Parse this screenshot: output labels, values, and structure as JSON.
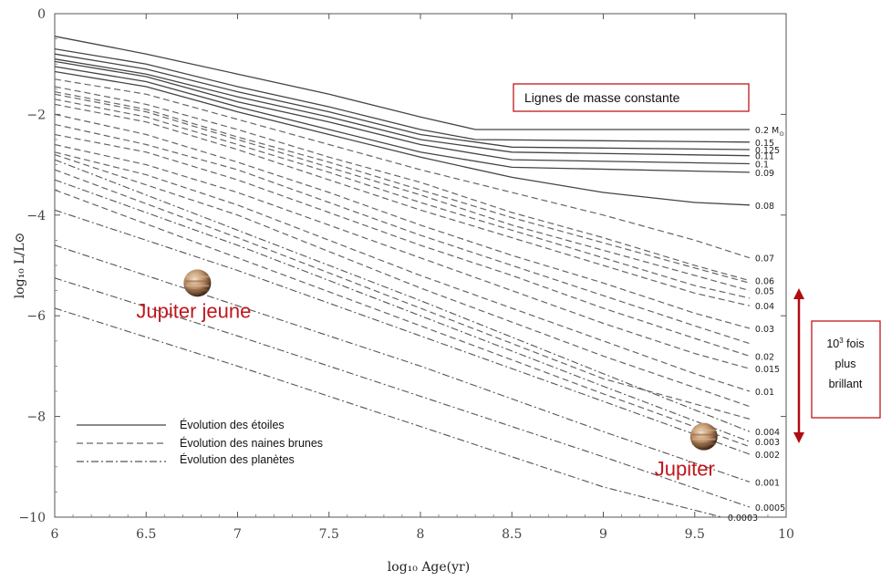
{
  "chart_data": {
    "type": "line",
    "xlabel": "log₁₀ Age(yr)",
    "ylabel": "log₁₀ L/L⊙",
    "xlim": [
      6,
      10
    ],
    "ylim": [
      -10,
      0
    ],
    "xticks": [
      "6",
      "6.5",
      "7",
      "7.5",
      "8",
      "8.5",
      "9",
      "9.5",
      "10"
    ],
    "yticks": [
      "0",
      "−2",
      "−4",
      "−6",
      "−8",
      "−10"
    ],
    "grid": false,
    "legend": {
      "position": "bottom-left",
      "entries": [
        {
          "label": "Évolution des étoiles",
          "style": "solid"
        },
        {
          "label": "Évolution des naines brunes",
          "style": "dashed"
        },
        {
          "label": "Évolution des planètes",
          "style": "dashdot"
        }
      ]
    },
    "series": [
      {
        "name": "0.2 M⊙",
        "label": "0.2 M",
        "sun": true,
        "kind": "star",
        "x": [
          6.0,
          6.5,
          7.0,
          7.5,
          8.0,
          8.3,
          9.8
        ],
        "y": [
          -0.45,
          -0.8,
          -1.2,
          -1.6,
          -2.05,
          -2.3,
          -2.3
        ]
      },
      {
        "name": "0.15",
        "label": "0.15",
        "kind": "star",
        "x": [
          6.0,
          6.5,
          7.0,
          7.5,
          8.0,
          8.3,
          9.8
        ],
        "y": [
          -0.7,
          -1.0,
          -1.45,
          -1.85,
          -2.3,
          -2.5,
          -2.55
        ]
      },
      {
        "name": "0.125",
        "label": "0.125",
        "kind": "star",
        "x": [
          6.0,
          6.5,
          7.0,
          7.5,
          8.0,
          8.5,
          9.8
        ],
        "y": [
          -0.8,
          -1.1,
          -1.55,
          -1.95,
          -2.4,
          -2.65,
          -2.7
        ]
      },
      {
        "name": "0.11",
        "label": "0.11",
        "kind": "star",
        "x": [
          6.0,
          6.5,
          7.0,
          7.5,
          8.0,
          8.5,
          9.8
        ],
        "y": [
          -0.9,
          -1.2,
          -1.65,
          -2.05,
          -2.5,
          -2.75,
          -2.82
        ]
      },
      {
        "name": "0.1",
        "label": "0.1",
        "kind": "star",
        "x": [
          6.0,
          6.5,
          7.0,
          7.5,
          8.0,
          8.5,
          9.8
        ],
        "y": [
          -0.95,
          -1.25,
          -1.75,
          -2.15,
          -2.6,
          -2.9,
          -2.98
        ]
      },
      {
        "name": "0.09",
        "label": "0.09",
        "kind": "star",
        "x": [
          6.0,
          6.5,
          7.0,
          7.5,
          8.0,
          8.5,
          9.8
        ],
        "y": [
          -1.05,
          -1.35,
          -1.85,
          -2.3,
          -2.75,
          -3.05,
          -3.15
        ]
      },
      {
        "name": "0.08",
        "label": "0.08",
        "kind": "star",
        "x": [
          6.0,
          6.5,
          7.0,
          7.5,
          8.0,
          8.5,
          9.0,
          9.5,
          9.8
        ],
        "y": [
          -1.15,
          -1.45,
          -1.95,
          -2.4,
          -2.85,
          -3.25,
          -3.55,
          -3.75,
          -3.8
        ]
      },
      {
        "name": "0.07",
        "label": "0.07",
        "kind": "bd",
        "x": [
          6.0,
          6.5,
          7.0,
          7.5,
          8.0,
          8.5,
          9.0,
          9.5,
          9.8
        ],
        "y": [
          -1.3,
          -1.6,
          -2.1,
          -2.6,
          -3.1,
          -3.55,
          -4.0,
          -4.5,
          -4.85
        ]
      },
      {
        "name": "0.06",
        "label": "0.06",
        "kind": "bd",
        "x": [
          6.0,
          6.5,
          7.0,
          7.5,
          8.0,
          8.5,
          9.0,
          9.5,
          9.8
        ],
        "y": [
          -1.45,
          -1.8,
          -2.3,
          -2.85,
          -3.35,
          -3.95,
          -4.45,
          -5.0,
          -5.3
        ]
      },
      {
        "name": "0.05",
        "label": "0.05",
        "kind": "bd",
        "x": [
          6.0,
          6.5,
          7.0,
          7.5,
          8.0,
          8.5,
          9.0,
          9.5,
          9.8
        ],
        "y": [
          -1.6,
          -1.95,
          -2.5,
          -3.05,
          -3.6,
          -4.2,
          -4.7,
          -5.2,
          -5.5
        ]
      },
      {
        "name": "0.04",
        "label": "0.04",
        "kind": "bd",
        "x": [
          6.0,
          6.5,
          7.0,
          7.5,
          8.0,
          8.5,
          9.0,
          9.5,
          9.8
        ],
        "y": [
          -1.8,
          -2.15,
          -2.7,
          -3.3,
          -3.9,
          -4.45,
          -5.0,
          -5.55,
          -5.8
        ]
      },
      {
        "name": "0.03",
        "label": "0.03",
        "kind": "bd",
        "x": [
          6.0,
          6.5,
          7.0,
          7.5,
          8.0,
          8.5,
          9.0,
          9.5,
          9.8
        ],
        "y": [
          -2.0,
          -2.4,
          -2.95,
          -3.55,
          -4.2,
          -4.8,
          -5.35,
          -5.95,
          -6.25
        ]
      },
      {
        "name": "0.02",
        "label": "0.02",
        "kind": "bd",
        "x": [
          6.0,
          6.5,
          7.0,
          7.5,
          8.0,
          8.5,
          9.0,
          9.5,
          9.8
        ],
        "y": [
          -2.4,
          -2.75,
          -3.3,
          -3.95,
          -4.6,
          -5.2,
          -5.85,
          -6.45,
          -6.8
        ]
      },
      {
        "name": "0.015",
        "label": "0.015",
        "kind": "bd",
        "x": [
          6.0,
          6.5,
          7.0,
          7.5,
          8.0,
          8.5,
          9.0,
          9.5,
          9.8
        ],
        "y": [
          -2.6,
          -3.0,
          -3.55,
          -4.2,
          -4.85,
          -5.5,
          -6.15,
          -6.75,
          -7.05
        ]
      },
      {
        "name": "0.01",
        "label": "0.01",
        "kind": "bd",
        "x": [
          6.0,
          6.5,
          7.0,
          7.5,
          8.0,
          8.5,
          9.0,
          9.5,
          9.8
        ],
        "y": [
          -2.75,
          -3.2,
          -3.8,
          -4.5,
          -5.2,
          -5.85,
          -6.5,
          -7.15,
          -7.5
        ]
      },
      {
        "name": "0.004",
        "label": "0.004",
        "kind": "planet",
        "x": [
          6.0,
          7.0,
          8.0,
          9.0,
          9.8
        ],
        "y": [
          -2.9,
          -4.3,
          -5.7,
          -7.15,
          -8.3
        ]
      },
      {
        "name": "0.003",
        "label": "0.003",
        "kind": "planet",
        "x": [
          6.0,
          7.0,
          8.0,
          9.0,
          9.8
        ],
        "y": [
          -3.3,
          -4.6,
          -6.0,
          -7.4,
          -8.5
        ]
      },
      {
        "name": "0.002",
        "label": "0.002",
        "kind": "planet",
        "x": [
          6.0,
          7.0,
          8.0,
          9.0,
          9.8
        ],
        "y": [
          -3.9,
          -5.1,
          -6.4,
          -7.7,
          -8.75
        ]
      },
      {
        "name": "0.001",
        "label": "0.001",
        "kind": "planet",
        "x": [
          6.0,
          7.0,
          8.0,
          9.0,
          9.8
        ],
        "y": [
          -4.6,
          -5.8,
          -7.0,
          -8.3,
          -9.3
        ]
      },
      {
        "name": "0.0005",
        "label": "0.0005",
        "kind": "planet",
        "x": [
          6.0,
          7.0,
          8.0,
          9.0,
          9.8
        ],
        "y": [
          -5.25,
          -6.4,
          -7.6,
          -8.8,
          -9.8
        ]
      },
      {
        "name": "0.0003",
        "label": "0.0003",
        "kind": "planet",
        "x": [
          6.0,
          7.0,
          8.0,
          9.0,
          9.65
        ],
        "y": [
          -5.85,
          -7.0,
          -8.2,
          -9.4,
          -10.0
        ]
      }
    ],
    "extra_dashed": [
      {
        "x": [
          6.0,
          6.5,
          7.0,
          7.5,
          8.0,
          8.5,
          9.0,
          9.5,
          9.8
        ],
        "y": [
          -1.55,
          -1.9,
          -2.45,
          -2.95,
          -3.5,
          -4.05,
          -4.55,
          -5.05,
          -5.35
        ]
      },
      {
        "x": [
          6.0,
          6.5,
          7.0,
          7.5,
          8.0,
          8.5,
          9.0,
          9.5,
          9.8
        ],
        "y": [
          -1.7,
          -2.05,
          -2.6,
          -3.15,
          -3.75,
          -4.3,
          -4.85,
          -5.4,
          -5.65
        ]
      },
      {
        "x": [
          6.0,
          6.5,
          7.0,
          7.5,
          8.0,
          8.5,
          9.0,
          9.5,
          9.8
        ],
        "y": [
          -2.2,
          -2.6,
          -3.1,
          -3.75,
          -4.4,
          -5.0,
          -5.6,
          -6.2,
          -6.55
        ]
      },
      {
        "x": [
          6.0,
          7.0,
          8.0,
          9.0,
          9.8
        ],
        "y": [
          -2.8,
          -4.0,
          -5.45,
          -6.8,
          -7.8
        ]
      },
      {
        "x": [
          6.0,
          7.0,
          8.0,
          9.0,
          9.8
        ],
        "y": [
          -3.1,
          -4.45,
          -5.85,
          -7.25,
          -8.05
        ]
      },
      {
        "x": [
          6.0,
          7.0,
          8.0,
          9.0,
          9.8
        ],
        "y": [
          -3.5,
          -4.85,
          -6.2,
          -7.55,
          -8.6
        ]
      }
    ],
    "annotations": {
      "jupiter_young": {
        "label": "Jupiter jeune",
        "x": 6.78,
        "y": -5.35
      },
      "jupiter": {
        "label": "Jupiter",
        "x": 9.55,
        "y": -8.4
      },
      "mass_box": "Lignes de masse constante",
      "brightness_note": {
        "superscript": "3",
        "base": "10",
        "line1": " fois",
        "line2": "plus",
        "line3": "brillant"
      }
    }
  },
  "colors": {
    "solid": "#444444",
    "dashed": "#666666",
    "dashdot": "#555555",
    "accent_red": "#c0161b",
    "arrow": "#b00d12"
  }
}
